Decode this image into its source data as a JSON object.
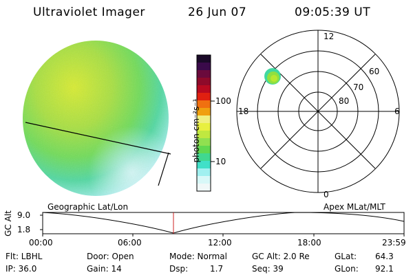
{
  "header": {
    "title": "Ultraviolet Imager",
    "date": "26 Jun 07",
    "time": "09:05:39 UT"
  },
  "colorbar": {
    "label": "photon cm⁻²s⁻¹",
    "ticks": [
      "100",
      "10"
    ],
    "colors": [
      "#1a0a28",
      "#3a0a4a",
      "#6a0a3c",
      "#8e0a2a",
      "#b80a20",
      "#e02010",
      "#f07010",
      "#f0a010",
      "#f0f080",
      "#e8f040",
      "#c0e840",
      "#90e050",
      "#60d850",
      "#40d890",
      "#40e0c8",
      "#a0f0f0",
      "#d8f8f8",
      "#f0f8f8"
    ]
  },
  "polar": {
    "mlt_labels": [
      "12",
      "18",
      "6",
      "0"
    ],
    "lat_labels": [
      "60",
      "70",
      "80"
    ]
  },
  "timeline": {
    "left_label": "Geographic Lat/Lon",
    "right_label": "Apex MLat/MLT",
    "yaxis_title": "GC Alt",
    "yticks": [
      "9.0",
      "1.8"
    ],
    "xticks": [
      "00:00",
      "06:00",
      "12:00",
      "18:00",
      "23:59"
    ],
    "marker_color": "#cc2020"
  },
  "info": {
    "flt": "Flt: LBHL",
    "ip": "IP: 36.0",
    "door": "Door: Open",
    "gain": "Gain: 14",
    "mode": "Mode: Normal",
    "dsp_label": "Dsp:",
    "dsp_value": "1.7",
    "gcalt": "GC Alt: 2.0 Re",
    "seq": "Seq: 39",
    "glat_label": "GLat:",
    "glat_value": "64.3",
    "glon_label": "GLon:",
    "glon_value": "92.1"
  }
}
